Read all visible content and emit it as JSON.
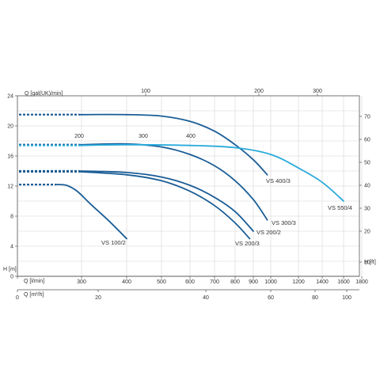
{
  "chart_data": {
    "type": "line",
    "title": "",
    "axes": {
      "flow_lpm": {
        "label": "Q [l/min]",
        "range": [
          0,
          1800
        ],
        "ticks": [
          0,
          300,
          400,
          500,
          600,
          700,
          800,
          900,
          1000,
          1200,
          1400,
          1600,
          1800
        ]
      },
      "flow_m3h": {
        "label": "Q [m³/h]",
        "ticks": [
          0,
          20,
          40,
          60,
          80,
          100
        ]
      },
      "flow_galuk": {
        "label": "Q [gal(UK)/min]",
        "ticks": [
          100,
          200,
          300
        ]
      },
      "flow_galuk_inner": {
        "ticks": [
          200,
          300,
          400
        ]
      },
      "head_m": {
        "label": "H [m]",
        "range": [
          0,
          24
        ],
        "ticks": [
          0,
          4,
          8,
          12,
          16,
          20,
          24
        ]
      },
      "head_ft": {
        "label": "H [ft]",
        "ticks": [
          10,
          20,
          30,
          40,
          50,
          60,
          70
        ]
      }
    },
    "units": {
      "x": "l/min",
      "y": "m"
    },
    "series": [
      {
        "name": "VS 100/2",
        "color": "#1a5d96",
        "dashed_start": [
          0,
          180
        ],
        "x": [
          180,
          230,
          280,
          320,
          360,
          400
        ],
        "y": [
          12.2,
          12.1,
          11.3,
          9.6,
          7.4,
          5.0
        ]
      },
      {
        "name": "VS 200/2",
        "color": "#1a5d96",
        "dashed_start": [
          0,
          290
        ],
        "x": [
          290,
          400,
          500,
          600,
          700,
          800,
          900
        ],
        "y": [
          14.0,
          13.8,
          13.2,
          12.1,
          10.5,
          8.6,
          6.0
        ]
      },
      {
        "name": "VS 200/3",
        "color": "#1a5d96",
        "dashed_start": [
          0,
          290
        ],
        "x": [
          290,
          400,
          500,
          600,
          700,
          800,
          880
        ],
        "y": [
          13.9,
          13.5,
          12.7,
          11.3,
          9.4,
          7.1,
          5.0
        ]
      },
      {
        "name": "VS 300/3",
        "color": "#1a5d96",
        "dashed_start": [
          0,
          290
        ],
        "x": [
          290,
          400,
          500,
          600,
          700,
          800,
          900,
          980
        ],
        "y": [
          17.5,
          17.6,
          17.2,
          16.2,
          14.7,
          12.7,
          10.2,
          7.5
        ]
      },
      {
        "name": "VS 400/3",
        "color": "#1a5d96",
        "dashed_start": [
          0,
          290
        ],
        "x": [
          290,
          400,
          500,
          600,
          700,
          800,
          900,
          980
        ],
        "y": [
          21.5,
          21.5,
          21.3,
          20.6,
          19.3,
          17.5,
          15.5,
          13.5
        ]
      },
      {
        "name": "VS 550/4",
        "color": "#2aaadc",
        "dashed_start": [
          0,
          290
        ],
        "x": [
          290,
          400,
          600,
          800,
          1000,
          1200,
          1400,
          1600
        ],
        "y": [
          17.4,
          17.5,
          17.4,
          17.1,
          16.2,
          14.4,
          12.5,
          10.0
        ]
      }
    ],
    "grid": true,
    "legend": "inline labels"
  }
}
